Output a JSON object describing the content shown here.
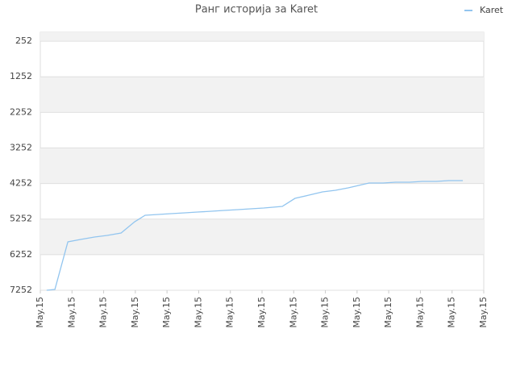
{
  "chart_data": {
    "type": "line",
    "title": "Ранг историја за Karet",
    "reverse_y": true,
    "grid": true,
    "legend": "top-right",
    "ylim": [
      0,
      7252
    ],
    "yticks": [
      252,
      1252,
      2252,
      3252,
      4252,
      5252,
      6252,
      7252
    ],
    "xlim": [
      0,
      14
    ],
    "xticks": [
      {
        "value": 0,
        "label": "May.15"
      },
      {
        "value": 1,
        "label": "May.15"
      },
      {
        "value": 2,
        "label": "May.15"
      },
      {
        "value": 3,
        "label": "May.15"
      },
      {
        "value": 4,
        "label": "May.15"
      },
      {
        "value": 5,
        "label": "May.15"
      },
      {
        "value": 6,
        "label": "May.15"
      },
      {
        "value": 7,
        "label": "May.15"
      },
      {
        "value": 8,
        "label": "May.15"
      },
      {
        "value": 9,
        "label": "May.15"
      },
      {
        "value": 10,
        "label": "May.15"
      },
      {
        "value": 11,
        "label": "May.15"
      },
      {
        "value": 12,
        "label": "May.15"
      },
      {
        "value": 13,
        "label": "May.15"
      },
      {
        "value": 14,
        "label": "May.15"
      }
    ],
    "x": [
      0.2,
      0.46,
      0.87,
      1.27,
      1.71,
      2.11,
      2.55,
      2.98,
      3.31,
      3.72,
      4.12,
      4.56,
      4.96,
      5.4,
      5.8,
      6.24,
      6.64,
      7.05,
      7.64,
      8.04,
      8.48,
      8.91,
      9.32,
      9.72,
      10.05,
      10.38,
      10.82,
      11.22,
      11.66,
      12.06,
      12.5,
      12.9,
      13.34
    ],
    "series": [
      {
        "name": "Karet",
        "color": "#92c5ef",
        "values": [
          7252,
          7229,
          5892,
          5824,
          5756,
          5711,
          5643,
          5326,
          5144,
          5122,
          5099,
          5076,
          5054,
          5031,
          5009,
          4986,
          4963,
          4941,
          4895,
          4669,
          4578,
          4488,
          4442,
          4374,
          4306,
          4238,
          4238,
          4215,
          4215,
          4193,
          4193,
          4170,
          4170
        ]
      }
    ]
  }
}
